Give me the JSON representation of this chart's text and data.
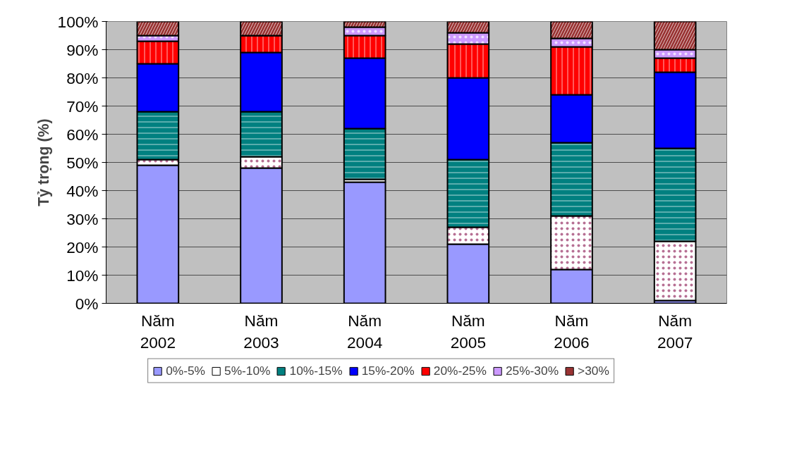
{
  "chart_data": {
    "type": "bar",
    "stacked": true,
    "ylabel": "Tỷ trọng (%)",
    "categories": [
      "Năm 2002",
      "Năm 2003",
      "Năm 2004",
      "Năm 2005",
      "Năm 2006",
      "Năm 2007"
    ],
    "series": [
      {
        "name": "0%-5%",
        "color": "#9999ff",
        "values": [
          49,
          48,
          43,
          21,
          12,
          1
        ]
      },
      {
        "name": "5%-10%",
        "color": "#ffffff",
        "values": [
          2,
          4,
          1,
          6,
          19,
          21
        ]
      },
      {
        "name": "10%-15%",
        "color": "#008080",
        "values": [
          17,
          16,
          18,
          24,
          26,
          33
        ]
      },
      {
        "name": "15%-20%",
        "color": "#0000ff",
        "values": [
          17,
          21,
          25,
          29,
          17,
          27
        ]
      },
      {
        "name": "20%-25%",
        "color": "#ff0000",
        "values": [
          8,
          6,
          8,
          12,
          17,
          5
        ]
      },
      {
        "name": "25%-30%",
        "color": "#cc99ff",
        "values": [
          2,
          0,
          3,
          4,
          3,
          3
        ]
      },
      {
        "name": ">30%",
        "color": "#993333",
        "values": [
          5,
          5,
          2,
          4,
          6,
          10
        ]
      }
    ],
    "ylim": [
      0,
      100
    ],
    "yticks": [
      {
        "value": 0,
        "label": "0%"
      },
      {
        "value": 10,
        "label": "10%"
      },
      {
        "value": 20,
        "label": "20%"
      },
      {
        "value": 30,
        "label": "30%"
      },
      {
        "value": 40,
        "label": "40%"
      },
      {
        "value": 50,
        "label": "50%"
      },
      {
        "value": 60,
        "label": "60%"
      },
      {
        "value": 70,
        "label": "70%"
      },
      {
        "value": 80,
        "label": "80%"
      },
      {
        "value": 90,
        "label": "90%"
      },
      {
        "value": 100,
        "label": "100%"
      }
    ],
    "grid": "y",
    "legend": "bottom"
  }
}
